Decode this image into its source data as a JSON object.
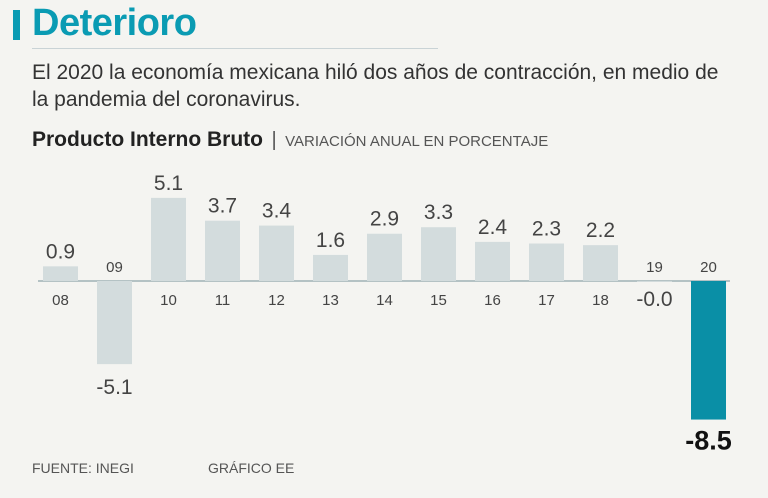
{
  "headline": "Deterioro",
  "subtitle": "El 2020 la economía mexicana hiló dos años de contracción, en medio de la pandemia del coronavirus.",
  "chart_heading": {
    "title": "Producto Interno Bruto",
    "separator": "|",
    "unit": "VARIACIÓN ANUAL EN PORCENTAJE"
  },
  "colors": {
    "accent": "#0a9bb3",
    "bar_default": "#d3dcdd",
    "bar_highlight": "#0a8fa6",
    "baseline": "#9fb2b6",
    "text": "#333333"
  },
  "chart_data": {
    "type": "bar",
    "categories": [
      "08",
      "09",
      "10",
      "11",
      "12",
      "13",
      "14",
      "15",
      "16",
      "17",
      "18",
      "19",
      "20"
    ],
    "values": [
      0.9,
      -5.1,
      5.1,
      3.7,
      3.4,
      1.6,
      2.9,
      3.3,
      2.4,
      2.3,
      2.2,
      -0.05,
      -8.5
    ],
    "value_labels": [
      "0.9",
      "-5.1",
      "5.1",
      "3.7",
      "3.4",
      "1.6",
      "2.9",
      "3.3",
      "2.4",
      "2.3",
      "2.2",
      "-0.0",
      "-8.5"
    ],
    "highlight_category": "20",
    "title": "Producto Interno Bruto",
    "ylabel": "VARIACIÓN ANUAL EN PORCENTAJE",
    "xlabel": "",
    "ylim": [
      -8.5,
      5.1
    ],
    "grid": false
  },
  "footer": {
    "source": "FUENTE: INEGI",
    "credit": "GRÁFICO EE"
  }
}
